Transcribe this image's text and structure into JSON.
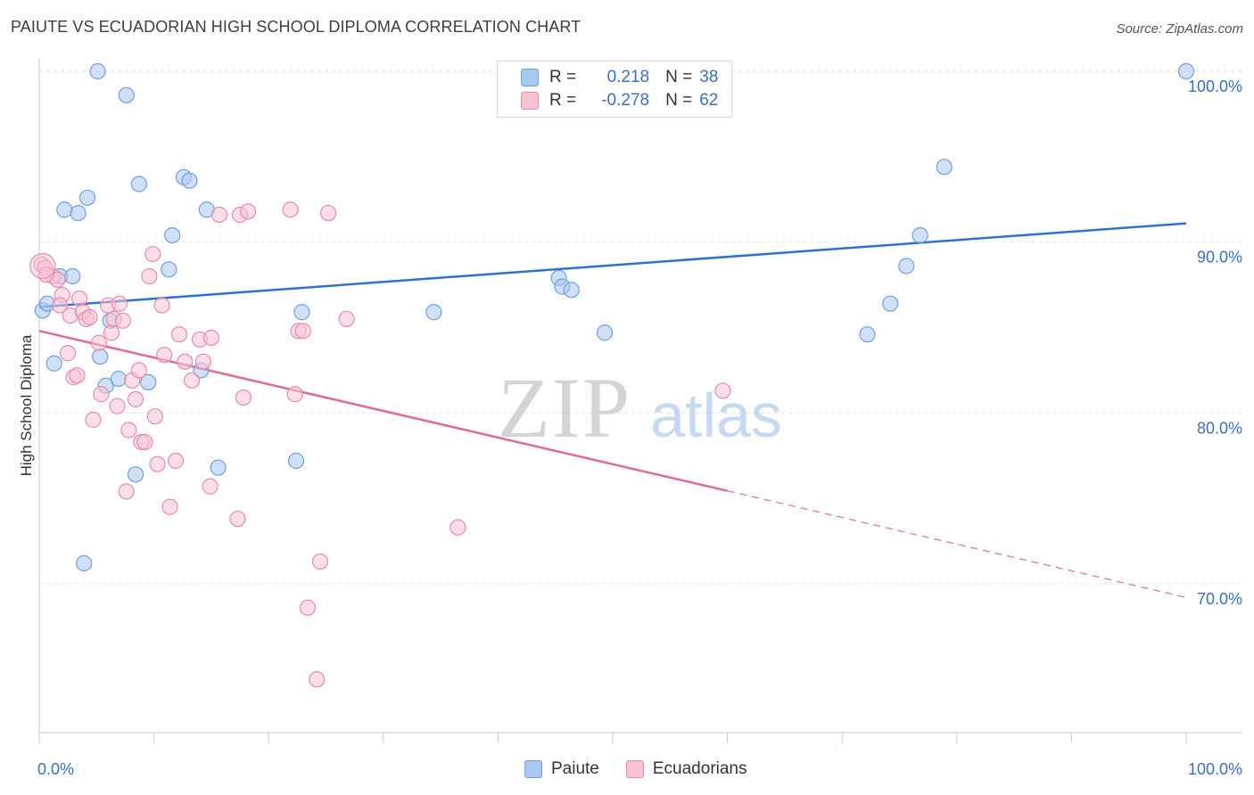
{
  "title": "PAIUTE VS ECUADORIAN HIGH SCHOOL DIPLOMA CORRELATION CHART",
  "source": "Source: ZipAtlas.com",
  "watermark": {
    "zip": "ZIP",
    "atlas": "atlas"
  },
  "legend": {
    "rows": [
      {
        "r_label": "R =",
        "r_value": "0.218",
        "n_label": "N =",
        "n_value": "38",
        "color": "#a9c8f0",
        "border": "#6d9fe0"
      },
      {
        "r_label": "R =",
        "r_value": "-0.278",
        "n_label": "N =",
        "n_value": "62",
        "color": "#f7c3d3",
        "border": "#e88aa8"
      }
    ]
  },
  "chart_data": {
    "type": "scatter",
    "title": "PAIUTE VS ECUADORIAN HIGH SCHOOL DIPLOMA CORRELATION CHART",
    "xlabel": "",
    "ylabel": "High School Diploma",
    "xlim": [
      0,
      100
    ],
    "ylim": [
      62,
      101.5
    ],
    "x_tick_labels": [
      "0.0%",
      "100.0%"
    ],
    "y_ticks": [
      70,
      80,
      90,
      100
    ],
    "y_tick_labels": [
      "70.0%",
      "80.0%",
      "90.0%",
      "100.0%"
    ],
    "grid": true,
    "legend_position": "top-center",
    "series": [
      {
        "name": "Paiute",
        "color": "#a9c8f0",
        "stroke": "#6d9fe0",
        "trend_color": "#2f72cc",
        "trend": {
          "x0": 0,
          "y0": 86.2,
          "x1": 100,
          "y1": 91.1,
          "solid_until": 100
        },
        "points": [
          [
            0.3,
            86.0
          ],
          [
            0.7,
            86.4
          ],
          [
            1.3,
            82.9
          ],
          [
            1.8,
            88.0
          ],
          [
            2.2,
            91.9
          ],
          [
            2.9,
            88.0
          ],
          [
            3.4,
            91.7
          ],
          [
            3.9,
            71.2
          ],
          [
            4.2,
            92.6
          ],
          [
            5.1,
            100.0
          ],
          [
            5.3,
            83.3
          ],
          [
            5.8,
            81.6
          ],
          [
            6.2,
            85.4
          ],
          [
            6.9,
            82.0
          ],
          [
            7.6,
            98.6
          ],
          [
            8.4,
            76.4
          ],
          [
            8.7,
            93.4
          ],
          [
            9.5,
            81.8
          ],
          [
            11.6,
            90.4
          ],
          [
            11.3,
            88.4
          ],
          [
            12.6,
            93.8
          ],
          [
            13.1,
            93.6
          ],
          [
            14.1,
            82.5
          ],
          [
            14.6,
            91.9
          ],
          [
            15.6,
            76.8
          ],
          [
            22.4,
            77.2
          ],
          [
            22.9,
            85.9
          ],
          [
            34.4,
            85.9
          ],
          [
            45.3,
            87.9
          ],
          [
            45.6,
            87.4
          ],
          [
            46.4,
            87.2
          ],
          [
            49.3,
            84.7
          ],
          [
            72.2,
            84.6
          ],
          [
            74.2,
            86.4
          ],
          [
            75.6,
            88.6
          ],
          [
            76.8,
            90.4
          ],
          [
            78.9,
            94.4
          ],
          [
            100.0,
            100.0
          ]
        ]
      },
      {
        "name": "Ecuadorians",
        "color": "#f7c3d3",
        "stroke": "#e88aa8",
        "trend_color": "#e06a96",
        "trend": {
          "x0": 0,
          "y0": 84.8,
          "x1": 100,
          "y1": 69.2,
          "solid_until": 60
        },
        "points": [
          [
            0.2,
            88.7
          ],
          [
            0.5,
            88.5
          ],
          [
            1.2,
            88.0
          ],
          [
            1.6,
            87.8
          ],
          [
            2.0,
            86.9
          ],
          [
            1.8,
            86.3
          ],
          [
            2.5,
            83.5
          ],
          [
            2.7,
            85.7
          ],
          [
            3.0,
            82.1
          ],
          [
            3.3,
            82.2
          ],
          [
            3.5,
            86.7
          ],
          [
            3.8,
            85.9
          ],
          [
            4.1,
            85.5
          ],
          [
            4.4,
            85.6
          ],
          [
            4.7,
            79.6
          ],
          [
            5.2,
            84.1
          ],
          [
            5.4,
            81.1
          ],
          [
            6.0,
            86.3
          ],
          [
            6.3,
            84.7
          ],
          [
            6.5,
            85.5
          ],
          [
            6.8,
            80.4
          ],
          [
            7.0,
            86.4
          ],
          [
            7.3,
            85.4
          ],
          [
            7.6,
            75.4
          ],
          [
            7.8,
            79.0
          ],
          [
            8.1,
            81.9
          ],
          [
            8.4,
            80.8
          ],
          [
            8.7,
            82.5
          ],
          [
            8.9,
            78.3
          ],
          [
            9.2,
            78.3
          ],
          [
            9.6,
            88.0
          ],
          [
            9.9,
            89.3
          ],
          [
            10.1,
            79.8
          ],
          [
            10.3,
            77.0
          ],
          [
            10.7,
            86.3
          ],
          [
            10.9,
            83.4
          ],
          [
            11.4,
            74.5
          ],
          [
            11.9,
            77.2
          ],
          [
            12.2,
            84.6
          ],
          [
            12.7,
            83.0
          ],
          [
            13.3,
            81.9
          ],
          [
            14.0,
            84.3
          ],
          [
            14.3,
            83.0
          ],
          [
            14.9,
            75.7
          ],
          [
            15.0,
            84.4
          ],
          [
            15.7,
            91.6
          ],
          [
            17.5,
            91.6
          ],
          [
            17.8,
            80.9
          ],
          [
            18.2,
            91.8
          ],
          [
            17.3,
            73.8
          ],
          [
            21.9,
            91.9
          ],
          [
            22.3,
            81.1
          ],
          [
            22.6,
            84.8
          ],
          [
            23.0,
            84.8
          ],
          [
            23.4,
            68.6
          ],
          [
            24.2,
            64.4
          ],
          [
            24.5,
            71.3
          ],
          [
            25.2,
            91.7
          ],
          [
            26.8,
            85.5
          ],
          [
            36.5,
            73.3
          ],
          [
            59.6,
            81.3
          ],
          [
            0.6,
            88.1
          ]
        ]
      }
    ]
  }
}
